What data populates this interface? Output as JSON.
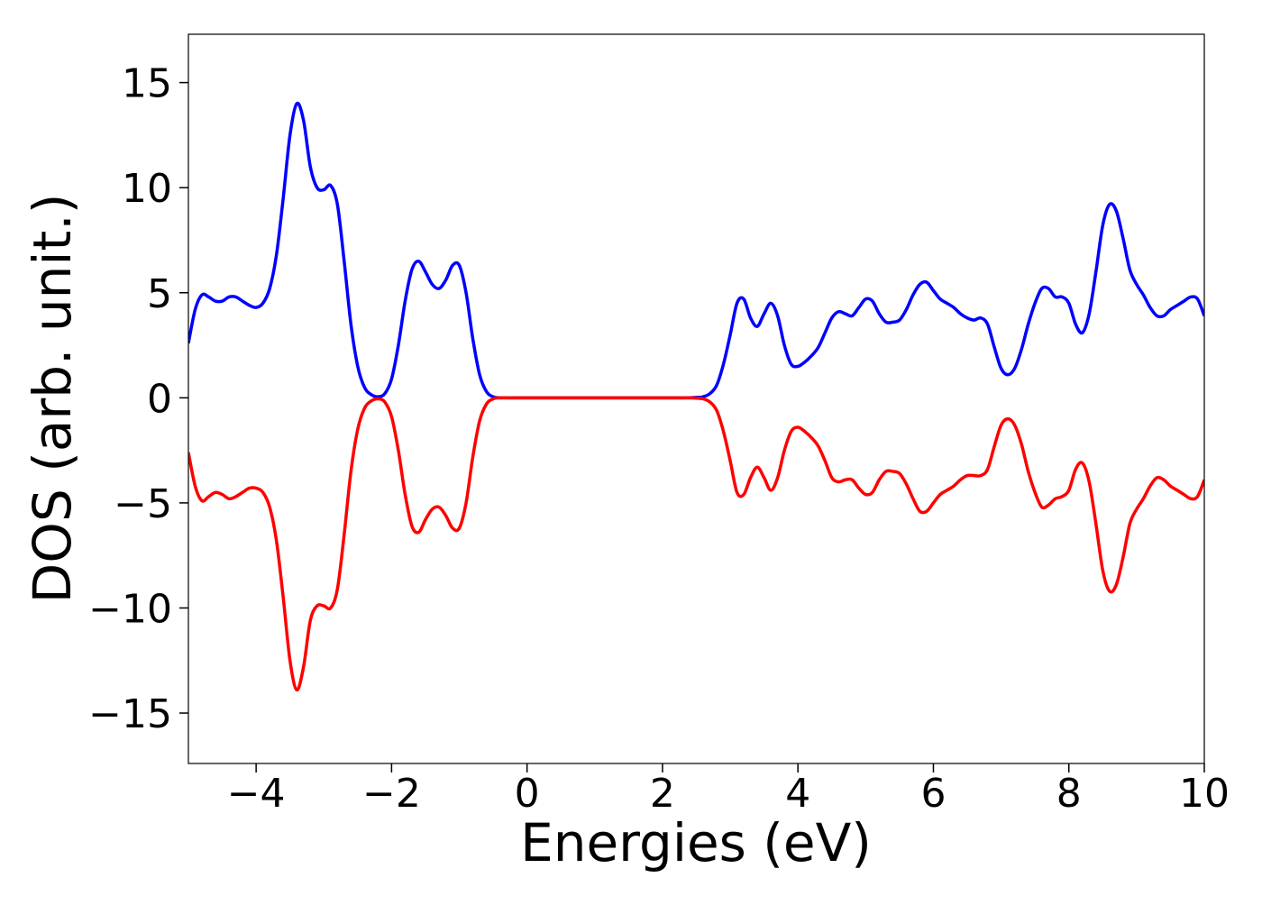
{
  "chart_data": {
    "type": "line",
    "xlabel": "Energies (eV)",
    "ylabel": "DOS (arb. unit.)",
    "xlim": [
      -5,
      10
    ],
    "ylim": [
      -17.4,
      17.3
    ],
    "xticks": [
      {
        "value": -4,
        "label": "−4"
      },
      {
        "value": -2,
        "label": "−2"
      },
      0,
      2,
      4,
      6,
      8,
      10
    ],
    "yticks": [
      {
        "value": -15,
        "label": "−15"
      },
      {
        "value": -10,
        "label": "−10"
      },
      {
        "value": -5,
        "label": "−5"
      },
      0,
      5,
      10,
      15
    ],
    "grid": false,
    "x": [
      -5,
      -4.9,
      -4.8,
      -4.7,
      -4.6,
      -4.5,
      -4.4,
      -4.3,
      -4.2,
      -4.1,
      -4,
      -3.9,
      -3.8,
      -3.7,
      -3.6,
      -3.5,
      -3.4,
      -3.3,
      -3.2,
      -3.1,
      -3,
      -2.9,
      -2.8,
      -2.7,
      -2.6,
      -2.5,
      -2.4,
      -2.3,
      -2.2,
      -2.1,
      -2,
      -1.9,
      -1.8,
      -1.7,
      -1.6,
      -1.5,
      -1.4,
      -1.3,
      -1.2,
      -1.1,
      -1,
      -0.9,
      -0.8,
      -0.7,
      -0.6,
      -0.5,
      -0.4,
      -0.3,
      -0.2,
      -0.1,
      0,
      0.1,
      0.2,
      0.3,
      0.4,
      0.5,
      0.6,
      0.7,
      0.8,
      0.9,
      1,
      1.1,
      1.2,
      1.3,
      1.4,
      1.5,
      1.6,
      1.7,
      1.8,
      1.9,
      2,
      2.1,
      2.2,
      2.3,
      2.4,
      2.5,
      2.6,
      2.7,
      2.8,
      2.9,
      3,
      3.1,
      3.2,
      3.3,
      3.4,
      3.5,
      3.6,
      3.7,
      3.8,
      3.9,
      4,
      4.1,
      4.2,
      4.3,
      4.4,
      4.5,
      4.6,
      4.7,
      4.8,
      4.9,
      5,
      5.1,
      5.2,
      5.3,
      5.4,
      5.5,
      5.6,
      5.7,
      5.8,
      5.9,
      6,
      6.1,
      6.2,
      6.3,
      6.4,
      6.5,
      6.6,
      6.7,
      6.8,
      6.9,
      7,
      7.1,
      7.2,
      7.3,
      7.4,
      7.5,
      7.6,
      7.7,
      7.8,
      7.9,
      8,
      8.1,
      8.2,
      8.3,
      8.4,
      8.5,
      8.6,
      8.7,
      8.8,
      8.9,
      9,
      9.1,
      9.2,
      9.3,
      9.4,
      9.5,
      9.6,
      9.7,
      9.8,
      9.9,
      10
    ],
    "series": [
      {
        "color": "#0000ff",
        "values": [
          2.6,
          4.2,
          4.9,
          4.8,
          4.6,
          4.6,
          4.8,
          4.8,
          4.6,
          4.4,
          4.3,
          4.5,
          5.2,
          6.8,
          9.5,
          12.5,
          14.0,
          13.2,
          11.0,
          10.0,
          9.9,
          10.1,
          9.2,
          6.5,
          3.5,
          1.5,
          0.5,
          0.15,
          0.05,
          0.2,
          0.9,
          2.5,
          4.6,
          6.1,
          6.5,
          6.0,
          5.4,
          5.2,
          5.6,
          6.3,
          6.3,
          5.0,
          2.8,
          1.1,
          0.3,
          0.05,
          0,
          0,
          0,
          0,
          0,
          0,
          0,
          0,
          0,
          0,
          0,
          0,
          0,
          0,
          0,
          0,
          0,
          0,
          0,
          0,
          0,
          0,
          0,
          0,
          0,
          0,
          0,
          0,
          0,
          0.02,
          0.05,
          0.2,
          0.6,
          1.6,
          3.0,
          4.5,
          4.7,
          3.8,
          3.4,
          4.0,
          4.5,
          3.9,
          2.5,
          1.6,
          1.5,
          1.7,
          2.0,
          2.4,
          3.1,
          3.8,
          4.1,
          4.0,
          3.9,
          4.3,
          4.7,
          4.6,
          4.0,
          3.6,
          3.6,
          3.7,
          4.2,
          4.9,
          5.4,
          5.5,
          5.1,
          4.7,
          4.5,
          4.3,
          4.0,
          3.8,
          3.7,
          3.8,
          3.5,
          2.4,
          1.4,
          1.1,
          1.4,
          2.3,
          3.5,
          4.5,
          5.2,
          5.2,
          4.8,
          4.8,
          4.5,
          3.5,
          3.1,
          4.0,
          6.0,
          8.2,
          9.2,
          8.9,
          7.6,
          6.1,
          5.4,
          4.9,
          4.3,
          3.9,
          3.9,
          4.2,
          4.4,
          4.6,
          4.8,
          4.7,
          3.9
        ]
      },
      {
        "color": "#ff0000",
        "values": [
          -2.6,
          -4.2,
          -4.9,
          -4.7,
          -4.5,
          -4.6,
          -4.8,
          -4.7,
          -4.5,
          -4.3,
          -4.3,
          -4.5,
          -5.2,
          -6.8,
          -9.5,
          -12.5,
          -13.9,
          -12.8,
          -10.6,
          -9.9,
          -9.9,
          -10.0,
          -9.1,
          -6.5,
          -3.5,
          -1.5,
          -0.5,
          -0.15,
          -0.05,
          -0.2,
          -0.9,
          -2.5,
          -4.6,
          -6.1,
          -6.4,
          -5.8,
          -5.3,
          -5.2,
          -5.6,
          -6.2,
          -6.2,
          -5.0,
          -2.8,
          -1.1,
          -0.3,
          -0.05,
          0,
          0,
          0,
          0,
          0,
          0,
          0,
          0,
          0,
          0,
          0,
          0,
          0,
          0,
          0,
          0,
          0,
          0,
          0,
          0,
          0,
          0,
          0,
          0,
          0,
          0,
          0,
          0,
          0,
          -0.02,
          -0.05,
          -0.2,
          -0.6,
          -1.6,
          -3.0,
          -4.5,
          -4.6,
          -3.8,
          -3.3,
          -3.8,
          -4.4,
          -3.8,
          -2.5,
          -1.6,
          -1.4,
          -1.6,
          -1.9,
          -2.3,
          -3.0,
          -3.8,
          -4.0,
          -3.9,
          -3.9,
          -4.3,
          -4.6,
          -4.5,
          -3.9,
          -3.5,
          -3.5,
          -3.6,
          -4.1,
          -4.8,
          -5.4,
          -5.4,
          -5.0,
          -4.6,
          -4.4,
          -4.2,
          -3.9,
          -3.7,
          -3.7,
          -3.7,
          -3.4,
          -2.3,
          -1.3,
          -1.0,
          -1.3,
          -2.2,
          -3.5,
          -4.5,
          -5.2,
          -5.1,
          -4.8,
          -4.7,
          -4.4,
          -3.4,
          -3.1,
          -4.0,
          -6.0,
          -8.2,
          -9.2,
          -8.9,
          -7.6,
          -6.0,
          -5.3,
          -4.8,
          -4.2,
          -3.8,
          -3.9,
          -4.2,
          -4.4,
          -4.6,
          -4.8,
          -4.7,
          -3.9
        ]
      }
    ]
  }
}
